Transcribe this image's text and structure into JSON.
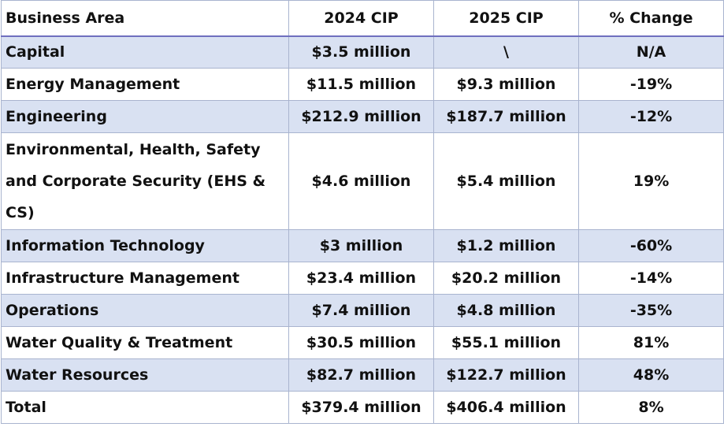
{
  "table": {
    "headers": [
      "Business Area",
      "2024 CIP",
      "2025 CIP",
      "% Change"
    ],
    "rows": [
      {
        "area": "Capital",
        "cip2024": "$3.5 million",
        "cip2025": "\\",
        "change": "N/A",
        "trend": "neutral"
      },
      {
        "area": "Energy Management",
        "cip2024": "$11.5 million",
        "cip2025": "$9.3 million",
        "change": "-19%",
        "trend": "negative"
      },
      {
        "area": "Engineering",
        "cip2024": "$212.9 million",
        "cip2025": "$187.7 million",
        "change": "-12%",
        "trend": "negative"
      },
      {
        "area": "Environmental, Health, Safety and Corporate Security (EHS & CS)",
        "cip2024": "$4.6 million",
        "cip2025": "$5.4 million",
        "change": "19%",
        "trend": "positive"
      },
      {
        "area": "Information Technology",
        "cip2024": "$3 million",
        "cip2025": "$1.2 million",
        "change": "-60%",
        "trend": "negative"
      },
      {
        "area": "Infrastructure Management",
        "cip2024": "$23.4 million",
        "cip2025": "$20.2 million",
        "change": "-14%",
        "trend": "negative"
      },
      {
        "area": "Operations",
        "cip2024": "$7.4 million",
        "cip2025": "$4.8 million",
        "change": "-35%",
        "trend": "negative"
      },
      {
        "area": "Water Quality & Treatment",
        "cip2024": "$30.5 million",
        "cip2025": "$55.1 million",
        "change": "81%",
        "trend": "positive"
      },
      {
        "area": "Water Resources",
        "cip2024": "$82.7 million",
        "cip2025": "$122.7 million",
        "change": "48%",
        "trend": "positive"
      },
      {
        "area": "Total",
        "cip2024": "$379.4 million",
        "cip2025": "$406.4 million",
        "change": "8%",
        "trend": "positive"
      }
    ]
  },
  "colors": {
    "row_shade": "#d9e1f2",
    "negative": "#c0392b",
    "positive": "#2e8b3e",
    "header_rule": "#6f6fbf"
  }
}
